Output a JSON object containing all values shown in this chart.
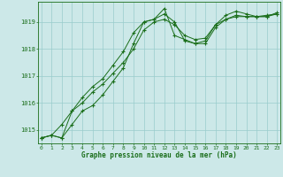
{
  "x": [
    0,
    1,
    2,
    3,
    4,
    5,
    6,
    7,
    8,
    9,
    10,
    11,
    12,
    13,
    14,
    15,
    16,
    17,
    18,
    19,
    20,
    21,
    22,
    23
  ],
  "series1": [
    1014.7,
    1014.8,
    1014.7,
    1015.2,
    1015.7,
    1015.9,
    1016.3,
    1016.8,
    1017.3,
    1018.2,
    1019.0,
    1019.1,
    1019.3,
    1019.0,
    1018.3,
    1018.2,
    1018.2,
    1018.8,
    1019.1,
    1019.2,
    1019.2,
    1019.2,
    1019.2,
    1019.3
  ],
  "series2": [
    1014.7,
    1014.8,
    1014.7,
    1015.7,
    1016.2,
    1016.6,
    1016.9,
    1017.4,
    1017.9,
    1018.6,
    1019.0,
    1019.1,
    1019.5,
    1018.5,
    1018.35,
    1018.2,
    1018.3,
    1018.9,
    1019.25,
    1019.4,
    1019.3,
    1019.2,
    1019.2,
    1019.35
  ],
  "series3": [
    1014.7,
    1014.8,
    1015.2,
    1015.7,
    1016.0,
    1016.4,
    1016.7,
    1017.1,
    1017.5,
    1018.0,
    1018.7,
    1019.0,
    1019.1,
    1018.9,
    1018.5,
    1018.35,
    1018.4,
    1018.9,
    1019.1,
    1019.25,
    1019.2,
    1019.2,
    1019.25,
    1019.3
  ],
  "line_color": "#1a6e1a",
  "bg_color": "#cce8e8",
  "grid_color": "#99cccc",
  "xlabel": "Graphe pression niveau de la mer (hPa)",
  "ylim": [
    1014.5,
    1019.75
  ],
  "yticks": [
    1015,
    1016,
    1017,
    1018,
    1019
  ],
  "xticks": [
    0,
    1,
    2,
    3,
    4,
    5,
    6,
    7,
    8,
    9,
    10,
    11,
    12,
    13,
    14,
    15,
    16,
    17,
    18,
    19,
    20,
    21,
    22,
    23
  ],
  "xlim": [
    -0.3,
    23.3
  ]
}
